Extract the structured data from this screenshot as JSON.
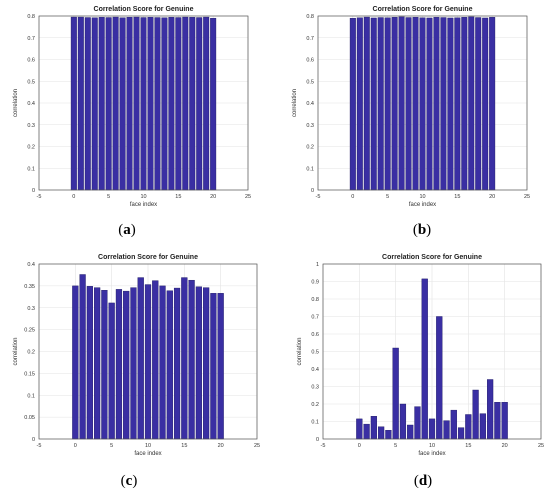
{
  "chart_data": [
    {
      "type": "bar",
      "panel_label": "a",
      "title": "Correlation Score for Genuine",
      "xlabel": "face index",
      "ylabel": "correlation",
      "xlim": [
        -5,
        25
      ],
      "ylim": [
        0,
        0.8
      ],
      "xticks": [
        -5,
        0,
        5,
        10,
        15,
        20,
        25
      ],
      "yticks": [
        0,
        0.1,
        0.2,
        0.3,
        0.4,
        0.5,
        0.6,
        0.7,
        0.8
      ],
      "grid": true,
      "bar_color": "#3a2fa3",
      "x": [
        0,
        1,
        2,
        3,
        4,
        5,
        6,
        7,
        8,
        9,
        10,
        11,
        12,
        13,
        14,
        15,
        16,
        17,
        18,
        19,
        20
      ],
      "values": [
        0.795,
        0.795,
        0.793,
        0.792,
        0.794,
        0.793,
        0.795,
        0.792,
        0.794,
        0.795,
        0.793,
        0.794,
        0.793,
        0.792,
        0.794,
        0.793,
        0.795,
        0.794,
        0.793,
        0.795,
        0.79
      ]
    },
    {
      "type": "bar",
      "panel_label": "b",
      "title": "Correlation Score for Genuine",
      "xlabel": "face index",
      "ylabel": "correlation",
      "xlim": [
        -5,
        25
      ],
      "ylim": [
        0,
        0.8
      ],
      "xticks": [
        -5,
        0,
        5,
        10,
        15,
        20,
        25
      ],
      "yticks": [
        0,
        0.1,
        0.2,
        0.3,
        0.4,
        0.5,
        0.6,
        0.7,
        0.8
      ],
      "grid": true,
      "bar_color": "#3a2fa3",
      "x": [
        0,
        1,
        2,
        3,
        4,
        5,
        6,
        7,
        8,
        9,
        10,
        11,
        12,
        13,
        14,
        15,
        16,
        17,
        18,
        19,
        20
      ],
      "values": [
        0.79,
        0.792,
        0.795,
        0.791,
        0.793,
        0.792,
        0.794,
        0.796,
        0.793,
        0.794,
        0.792,
        0.791,
        0.794,
        0.793,
        0.791,
        0.792,
        0.794,
        0.796,
        0.793,
        0.791,
        0.794
      ]
    },
    {
      "type": "bar",
      "panel_label": "c",
      "title": "Correlation Score for Genuine",
      "xlabel": "face index",
      "ylabel": "correlation",
      "xlim": [
        -5,
        25
      ],
      "ylim": [
        0,
        0.4
      ],
      "xticks": [
        -5,
        0,
        5,
        10,
        15,
        20,
        25
      ],
      "yticks": [
        0,
        0.05,
        0.1,
        0.15,
        0.2,
        0.25,
        0.3,
        0.35,
        0.4
      ],
      "grid": true,
      "bar_color": "#3a2fa3",
      "x": [
        0,
        1,
        2,
        3,
        4,
        5,
        6,
        7,
        8,
        9,
        10,
        11,
        12,
        13,
        14,
        15,
        16,
        17,
        18,
        19,
        20
      ],
      "values": [
        0.35,
        0.376,
        0.349,
        0.346,
        0.34,
        0.311,
        0.342,
        0.338,
        0.346,
        0.369,
        0.353,
        0.362,
        0.35,
        0.339,
        0.345,
        0.369,
        0.363,
        0.348,
        0.346,
        0.333,
        0.333
      ]
    },
    {
      "type": "bar",
      "panel_label": "d",
      "title": "Correlation Score for Genuine",
      "xlabel": "face index",
      "ylabel": "correlation",
      "xlim": [
        -5,
        25
      ],
      "ylim": [
        0,
        1
      ],
      "xticks": [
        -5,
        0,
        5,
        10,
        15,
        20,
        25
      ],
      "yticks": [
        0,
        0.1,
        0.2,
        0.3,
        0.4,
        0.5,
        0.6,
        0.7,
        0.8,
        0.9,
        1
      ],
      "grid": true,
      "bar_color": "#3a2fa3",
      "x": [
        0,
        1,
        2,
        3,
        4,
        5,
        6,
        7,
        8,
        9,
        10,
        11,
        12,
        13,
        14,
        15,
        16,
        17,
        18,
        19,
        20
      ],
      "values": [
        0.115,
        0.085,
        0.13,
        0.07,
        0.05,
        0.52,
        0.2,
        0.08,
        0.185,
        0.915,
        0.115,
        0.7,
        0.105,
        0.165,
        0.065,
        0.14,
        0.28,
        0.145,
        0.34,
        0.21,
        0.21
      ]
    }
  ]
}
